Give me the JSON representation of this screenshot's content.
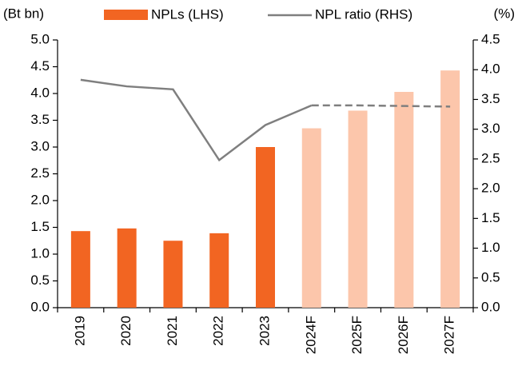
{
  "chart_data": {
    "type": "bar_line",
    "y_label": "(Bt bn)",
    "y2_label": "(%)",
    "categories": [
      "2019",
      "2020",
      "2021",
      "2022",
      "2023",
      "2024F",
      "2025F",
      "2026F",
      "2027F"
    ],
    "series": [
      {
        "name": "NPLs (LHS)",
        "type": "bar",
        "color": "#f26522",
        "forecast_color": "#fcc6ab",
        "values": [
          1.43,
          1.48,
          1.25,
          1.39,
          3.0,
          3.35,
          3.68,
          4.03,
          4.43
        ]
      },
      {
        "name": "NPL ratio (RHS)",
        "type": "line",
        "axis": "y2",
        "color": "#7f7f7f",
        "values": [
          3.83,
          3.72,
          3.67,
          2.48,
          3.07,
          3.4,
          3.4,
          3.39,
          3.38
        ]
      }
    ],
    "ylim": [
      0,
      5
    ],
    "yticks": [
      {
        "value": 0,
        "label": "0.0"
      },
      0.5,
      {
        "value": 1,
        "label": "1.0"
      },
      1.5,
      {
        "value": 2,
        "label": "2.0"
      },
      2.5,
      {
        "value": 3,
        "label": "3.0"
      },
      3.5,
      {
        "value": 4,
        "label": "4.0"
      },
      4.5,
      {
        "value": 5,
        "label": "5.0"
      }
    ],
    "y2lim": [
      0,
      4.5
    ],
    "y2ticks": [
      {
        "value": 0,
        "label": "0.0"
      },
      0.5,
      {
        "value": 1,
        "label": "1.0"
      },
      1.5,
      {
        "value": 2,
        "label": "2.0"
      },
      2.5,
      {
        "value": 3,
        "label": "3.0"
      },
      3.5,
      {
        "value": 4,
        "label": "4.0"
      },
      4.5
    ],
    "grid": false
  }
}
